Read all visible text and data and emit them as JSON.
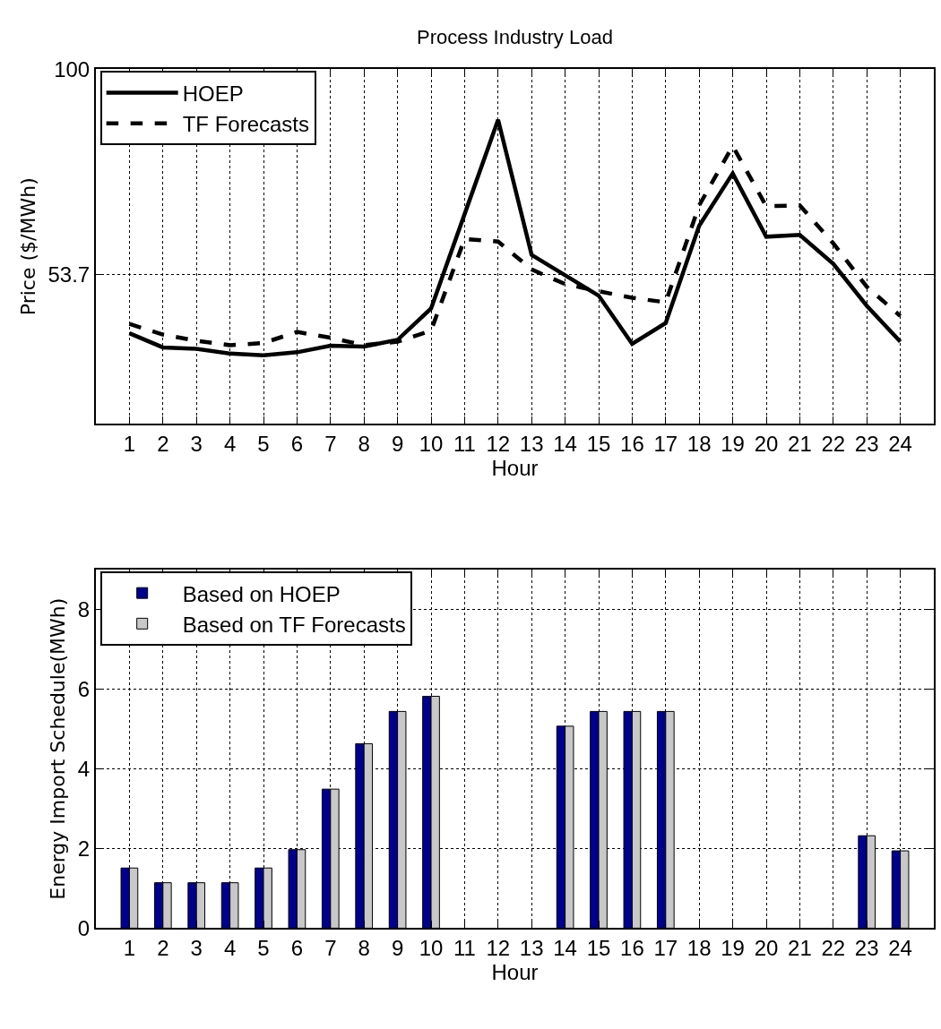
{
  "chart_data": [
    {
      "type": "line",
      "title": "Process Industry Load",
      "xlabel": "Hour",
      "ylabel": "Price ($/MWh)",
      "x": [
        1,
        2,
        3,
        4,
        5,
        6,
        7,
        8,
        9,
        10,
        11,
        12,
        13,
        14,
        15,
        16,
        17,
        18,
        19,
        20,
        21,
        22,
        23,
        24
      ],
      "series": [
        {
          "name": "HOEP",
          "color": "#000000",
          "line_style": "solid",
          "values": [
            40.4,
            37.2,
            36.9,
            35.8,
            35.4,
            36.1,
            37.6,
            37.4,
            38.9,
            46.0,
            67.3,
            88.6,
            58.1,
            53.5,
            48.9,
            38.0,
            42.7,
            64.7,
            76.5,
            62.2,
            62.6,
            56.1,
            46.6,
            38.5
          ]
        },
        {
          "name": "TF Forecasts",
          "color": "#000000",
          "line_style": "dashed",
          "values": [
            42.5,
            40.1,
            38.7,
            37.7,
            38.2,
            40.7,
            39.4,
            37.7,
            38.5,
            41.0,
            61.7,
            61.1,
            54.8,
            51.5,
            49.9,
            48.4,
            47.4,
            69.3,
            82.7,
            69.1,
            69.3,
            60.7,
            50.9,
            44.3
          ]
        }
      ],
      "xlim": [
        0,
        25
      ],
      "xticks": [
        1,
        2,
        3,
        4,
        5,
        6,
        7,
        8,
        9,
        10,
        11,
        12,
        13,
        14,
        15,
        16,
        17,
        18,
        19,
        20,
        21,
        22,
        23,
        24
      ],
      "ylim": [
        20,
        100
      ],
      "yticks": [
        53.7,
        100
      ],
      "grid": true,
      "legend": "top left"
    },
    {
      "type": "bar",
      "xlabel": "Hour",
      "ylabel": "Energy Import Schedule(MWh)",
      "x": [
        1,
        2,
        3,
        4,
        5,
        6,
        7,
        8,
        9,
        10,
        11,
        12,
        13,
        14,
        15,
        16,
        17,
        18,
        19,
        20,
        21,
        22,
        23,
        24
      ],
      "series": [
        {
          "name": "Based on HOEP",
          "color": "#000090",
          "values": [
            1.51,
            1.14,
            1.14,
            1.14,
            1.51,
            1.97,
            3.49,
            4.63,
            5.44,
            5.82,
            0,
            0,
            0,
            5.07,
            5.44,
            5.44,
            5.44,
            0,
            0,
            0,
            0,
            0,
            2.32,
            1.94
          ]
        },
        {
          "name": "Based on TF Forecasts",
          "color": "#c8c8c8",
          "values": [
            1.51,
            1.14,
            1.14,
            1.14,
            1.51,
            1.97,
            3.49,
            4.63,
            5.44,
            5.82,
            0,
            0,
            0,
            5.07,
            5.44,
            5.44,
            5.44,
            0,
            0,
            0,
            0,
            0,
            2.32,
            1.94
          ]
        }
      ],
      "xlim": [
        0,
        25
      ],
      "xticks": [
        1,
        2,
        3,
        4,
        5,
        6,
        7,
        8,
        9,
        10,
        11,
        12,
        13,
        14,
        15,
        16,
        17,
        18,
        19,
        20,
        21,
        22,
        23,
        24
      ],
      "ylim": [
        0,
        9
      ],
      "yticks": [
        0,
        2,
        4,
        6,
        8
      ],
      "grid": true,
      "legend": "top left"
    }
  ]
}
